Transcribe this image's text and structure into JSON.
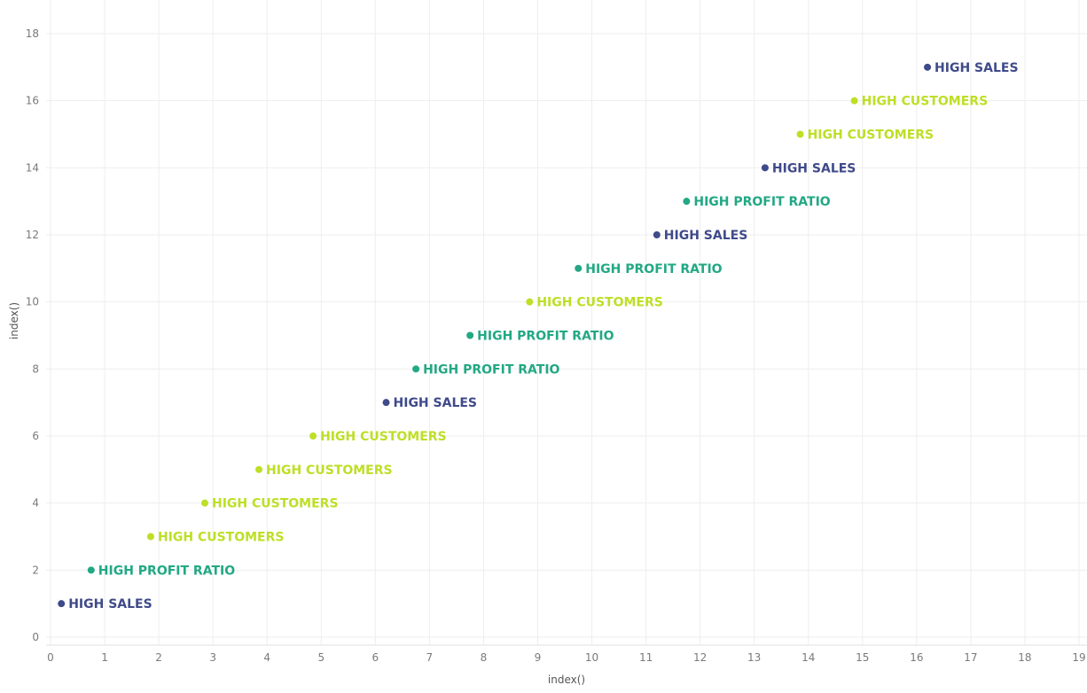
{
  "chart_data": {
    "type": "scatter",
    "xlabel": "index()",
    "ylabel": "index()",
    "xlim": [
      0,
      19
    ],
    "ylim": [
      0,
      18
    ],
    "x_ticks": [
      0,
      1,
      2,
      3,
      4,
      5,
      6,
      7,
      8,
      9,
      10,
      11,
      12,
      13,
      14,
      15,
      16,
      17,
      18,
      19
    ],
    "y_ticks": [
      0,
      2,
      4,
      6,
      8,
      10,
      12,
      14,
      16,
      18
    ],
    "grid": true,
    "colors": {
      "HIGH SALES": "#3f4a8a",
      "HIGH PROFIT RATIO": "#22a884",
      "HIGH CUSTOMERS": "#bddf26"
    },
    "points": [
      {
        "x": 0.2,
        "y": 1,
        "label": "HIGH SALES"
      },
      {
        "x": 0.75,
        "y": 2,
        "label": "HIGH PROFIT RATIO"
      },
      {
        "x": 1.85,
        "y": 3,
        "label": "HIGH CUSTOMERS"
      },
      {
        "x": 2.85,
        "y": 4,
        "label": "HIGH CUSTOMERS"
      },
      {
        "x": 3.85,
        "y": 5,
        "label": "HIGH CUSTOMERS"
      },
      {
        "x": 4.85,
        "y": 6,
        "label": "HIGH CUSTOMERS"
      },
      {
        "x": 6.2,
        "y": 7,
        "label": "HIGH SALES"
      },
      {
        "x": 6.75,
        "y": 8,
        "label": "HIGH PROFIT RATIO"
      },
      {
        "x": 7.75,
        "y": 9,
        "label": "HIGH PROFIT RATIO"
      },
      {
        "x": 8.85,
        "y": 10,
        "label": "HIGH CUSTOMERS"
      },
      {
        "x": 9.75,
        "y": 11,
        "label": "HIGH PROFIT RATIO"
      },
      {
        "x": 11.2,
        "y": 12,
        "label": "HIGH SALES"
      },
      {
        "x": 11.75,
        "y": 13,
        "label": "HIGH PROFIT RATIO"
      },
      {
        "x": 13.2,
        "y": 14,
        "label": "HIGH SALES"
      },
      {
        "x": 13.85,
        "y": 15,
        "label": "HIGH CUSTOMERS"
      },
      {
        "x": 14.85,
        "y": 16,
        "label": "HIGH CUSTOMERS"
      },
      {
        "x": 16.2,
        "y": 17,
        "label": "HIGH SALES"
      }
    ]
  }
}
